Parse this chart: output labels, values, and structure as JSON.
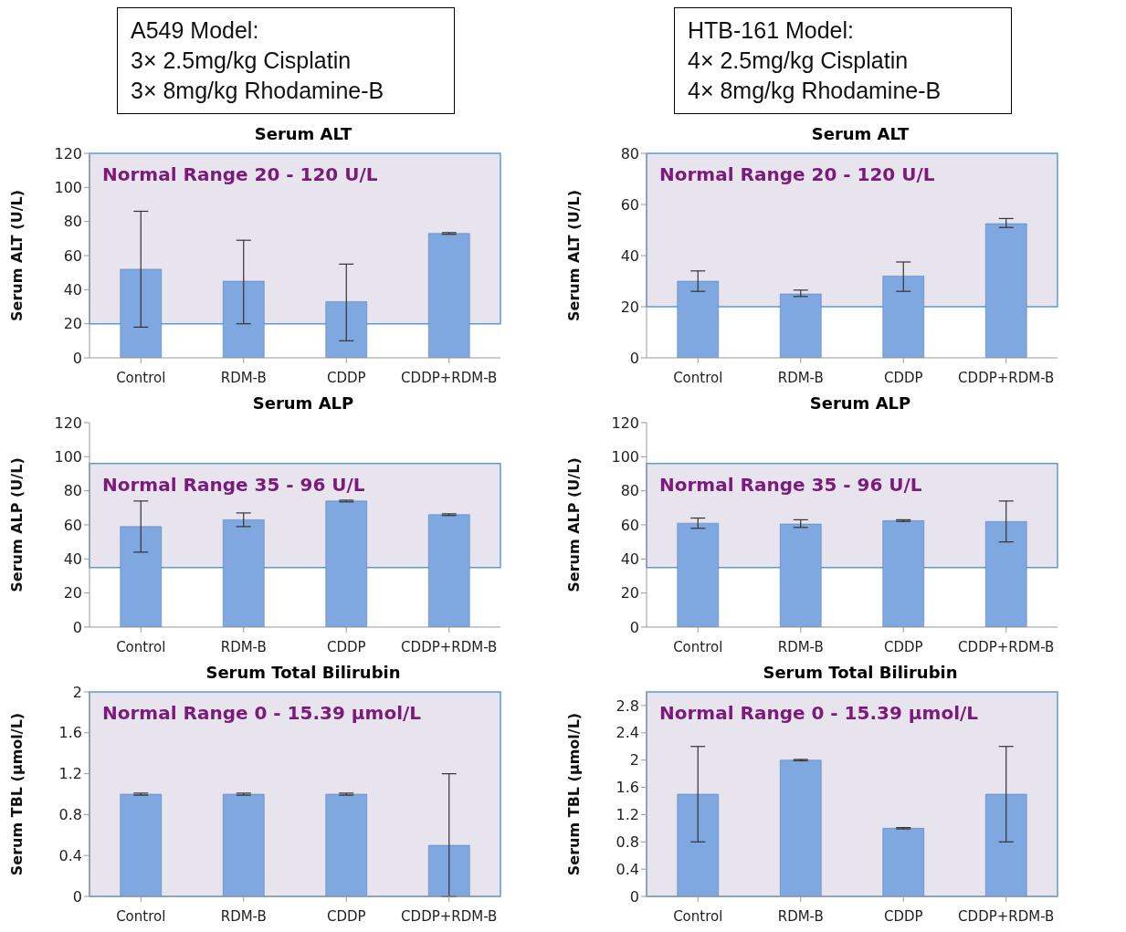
{
  "chart_data": [
    {
      "type": "other",
      "annotations": [
        "A549 Model:",
        "3× 2.5mg/kg Cisplatin",
        "3× 8mg/kg Rhodamine-B"
      ]
    },
    {
      "type": "other",
      "annotations": [
        "HTB-161 Model:",
        "4× 2.5mg/kg Cisplatin",
        "4× 8mg/kg Rhodamine-B"
      ]
    },
    {
      "type": "bar",
      "title": "Serum ALT",
      "ylabel": "Serum ALT (U/L)",
      "categories": [
        "Control",
        "RDM-B",
        "CDDP",
        "CDDP+RDM-B"
      ],
      "values": [
        52,
        45,
        33,
        73
      ],
      "errors": [
        [
          18,
          86
        ],
        [
          20,
          69
        ],
        [
          10,
          55
        ],
        [
          72.5,
          73.5
        ]
      ],
      "color": "#7fa8e0",
      "ylim": [
        0,
        120
      ],
      "yticks": [
        0,
        20,
        40,
        60,
        80,
        100,
        120
      ],
      "grid": false,
      "bands": [
        {
          "axis": "y",
          "from": 20,
          "to": 120,
          "label": "Normal Range 20 - 120 U/L",
          "color": "#d8d2e2"
        }
      ]
    },
    {
      "type": "bar",
      "title": "Serum ALT",
      "ylabel": "Serum ALT (U/L)",
      "categories": [
        "Control",
        "RDM-B",
        "CDDP",
        "CDDP+RDM-B"
      ],
      "values": [
        30,
        25,
        32,
        52.5
      ],
      "errors": [
        [
          26,
          34
        ],
        [
          24,
          26.5
        ],
        [
          26,
          37.5
        ],
        [
          51,
          54.5
        ]
      ],
      "color": "#7fa8e0",
      "ylim": [
        0,
        80
      ],
      "yticks": [
        0,
        20,
        40,
        60,
        80
      ],
      "grid": false,
      "bands": [
        {
          "axis": "y",
          "from": 20,
          "to": 80,
          "label": "Normal Range 20 - 120 U/L",
          "color": "#d8d2e2"
        }
      ]
    },
    {
      "type": "bar",
      "title": "Serum ALP",
      "ylabel": "Serum ALP (U/L)",
      "categories": [
        "Control",
        "RDM-B",
        "CDDP",
        "CDDP+RDM-B"
      ],
      "values": [
        59,
        63,
        74,
        66
      ],
      "errors": [
        [
          44,
          74
        ],
        [
          59,
          67
        ],
        0.5,
        0.5
      ],
      "color": "#7fa8e0",
      "ylim": [
        0,
        120
      ],
      "yticks": [
        0,
        20,
        40,
        60,
        80,
        100,
        120
      ],
      "grid": false,
      "bands": [
        {
          "axis": "y",
          "from": 35,
          "to": 96,
          "label": "Normal Range 35 - 96 U/L",
          "color": "#d8d2e2"
        }
      ]
    },
    {
      "type": "bar",
      "title": "Serum ALP",
      "ylabel": "Serum ALP (U/L)",
      "categories": [
        "Control",
        "RDM-B",
        "CDDP",
        "CDDP+RDM-B"
      ],
      "values": [
        61,
        60.5,
        62.5,
        62
      ],
      "errors": [
        [
          58,
          64
        ],
        [
          58.5,
          63
        ],
        0.5,
        [
          50,
          74
        ]
      ],
      "color": "#7fa8e0",
      "ylim": [
        0,
        120
      ],
      "yticks": [
        0,
        20,
        40,
        60,
        80,
        100,
        120
      ],
      "grid": false,
      "bands": [
        {
          "axis": "y",
          "from": 35,
          "to": 96,
          "label": "Normal Range 35 - 96 U/L",
          "color": "#d8d2e2"
        }
      ]
    },
    {
      "type": "bar",
      "title": "Serum Total Bilirubin",
      "ylabel": "Serum TBL (µmol/L)",
      "categories": [
        "Control",
        "RDM-B",
        "CDDP",
        "CDDP+RDM-B"
      ],
      "values": [
        1,
        1,
        1,
        0.5
      ],
      "errors": [
        0.01,
        0.01,
        0.01,
        [
          0,
          1.2
        ]
      ],
      "color": "#7fa8e0",
      "ylim": [
        0,
        2
      ],
      "yticks": [
        0,
        0.4,
        0.8,
        1.2,
        1.6,
        2
      ],
      "grid": false,
      "bands": [
        {
          "axis": "y",
          "from": 0,
          "to": 2,
          "label": "Normal Range 0 - 15.39 µmol/L",
          "color": "#d8d2e2"
        }
      ]
    },
    {
      "type": "bar",
      "title": "Serum Total Bilirubin",
      "ylabel": "Serum TBL (µmol/L)",
      "categories": [
        "Control",
        "RDM-B",
        "CDDP",
        "CDDP+RDM-B"
      ],
      "values": [
        1.5,
        2,
        1,
        1.5
      ],
      "errors": [
        [
          0.8,
          2.2
        ],
        0.01,
        0.01,
        [
          0.8,
          2.2
        ]
      ],
      "color": "#7fa8e0",
      "ylim": [
        0,
        3
      ],
      "yticks": [
        0,
        0.4,
        0.8,
        1.2,
        1.6,
        2,
        2.4,
        2.8
      ],
      "grid": false,
      "bands": [
        {
          "axis": "y",
          "from": 0,
          "to": 3,
          "label": "Normal Range 0 - 15.39 µmol/L",
          "color": "#d8d2e2"
        }
      ]
    }
  ]
}
